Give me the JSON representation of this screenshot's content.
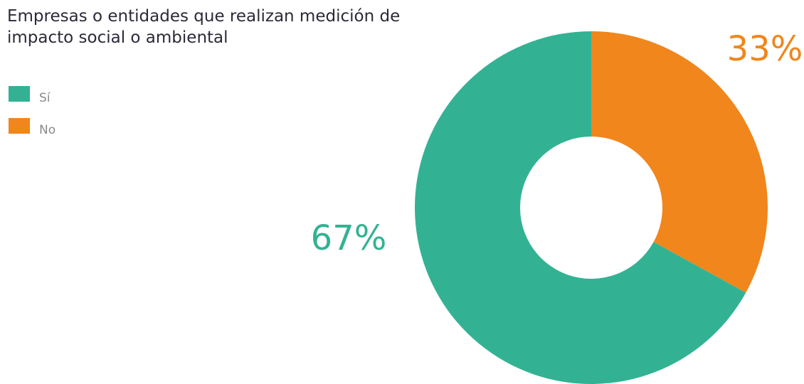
{
  "chart_data": {
    "type": "donut",
    "title": "Empresas o entidades que realizan medición de impacto social o ambiental",
    "categories": [
      "Sí",
      "No"
    ],
    "values": [
      67,
      33
    ],
    "value_labels": [
      "67%",
      "33%"
    ],
    "colors": [
      "#33b293",
      "#f0861c"
    ]
  }
}
